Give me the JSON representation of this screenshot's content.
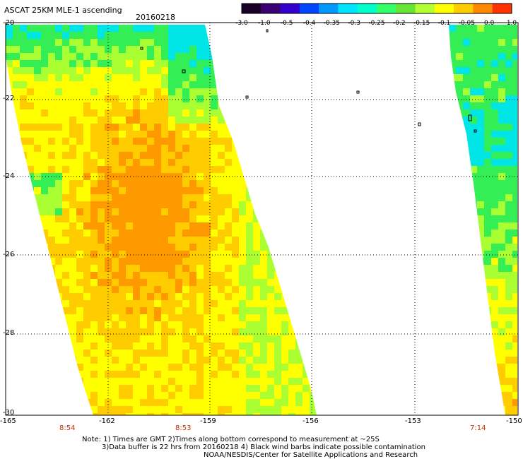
{
  "header": {
    "title": "ASCAT 25KM MLE-1 ascending",
    "date": "20160218"
  },
  "colorbar": {
    "tick_labels": [
      "-3.0",
      "-1.0",
      "-0.5",
      "-0.4",
      "-0.35",
      "-0.3",
      "-0.25",
      "-0.2",
      "-0.15",
      "-0.1",
      "-0.05",
      "0.0",
      "1.0"
    ],
    "colors": [
      "#1a0026",
      "#3b0073",
      "#3300cc",
      "#0044ff",
      "#0099ff",
      "#00e5ff",
      "#00ffcc",
      "#33ff66",
      "#66e633",
      "#b3ff33",
      "#ffff00",
      "#ffcc00",
      "#ff8800",
      "#ff3300"
    ]
  },
  "map": {
    "lat_labels": [
      "-20",
      "-22",
      "-24",
      "-26",
      "-28",
      "-30"
    ],
    "lon_labels": [
      "-165",
      "-162",
      "-159",
      "-156",
      "-153",
      "-150"
    ],
    "time_labels": [
      "8:54",
      "8:53",
      "7:14"
    ],
    "lat_range": [
      -30,
      -20
    ],
    "lon_range": [
      -165,
      -150
    ],
    "time_color": "#c03000",
    "field_colors": {
      "low": "#00e5e5",
      "mid_low": "#33ee55",
      "mid": "#aaff33",
      "high": "#ffff00",
      "higher": "#ffcc00",
      "highest": "#ff9900"
    }
  },
  "notes": {
    "line1": "Note: 1) Times are GMT 2)Times along bottom correspond to measurement at ~25S",
    "line2": "3)Data buffer is 22 hrs from 20160218 4) Black wind barbs indicate possible contamination",
    "line3": "NOAA/NESDIS/Center for Satellite Applications and Research"
  }
}
